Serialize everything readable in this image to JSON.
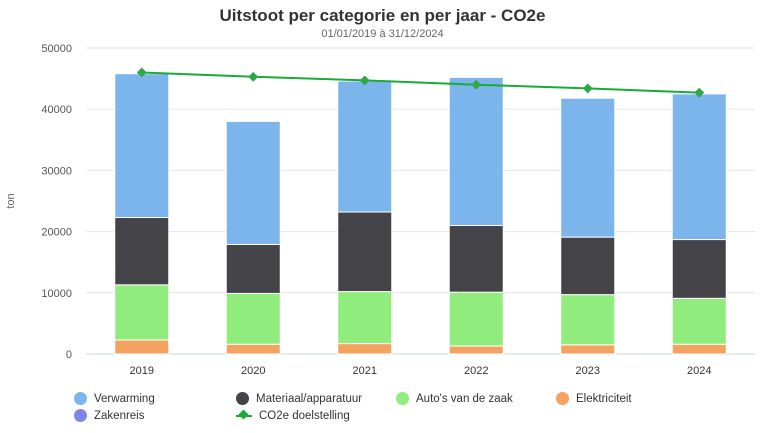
{
  "chart_data": {
    "type": "bar",
    "stacked": true,
    "title": "Uitstoot per categorie en per jaar - CO2e",
    "subtitle": "01/01/2019 à 31/12/2024",
    "ylabel": "ton",
    "ylim": [
      0,
      50000
    ],
    "yticks": [
      "0",
      "10000",
      "20000",
      "30000",
      "40000",
      "50000"
    ],
    "grid": true,
    "legend_position": "bottom",
    "categories": [
      "2019",
      "2020",
      "2021",
      "2022",
      "2023",
      "2024"
    ],
    "series": [
      {
        "name": "Elektriciteit",
        "color": "#f4a261",
        "values": [
          2300,
          1600,
          1700,
          1300,
          1500,
          1600
        ]
      },
      {
        "name": "Auto's van de zaak",
        "color": "#90ed7d",
        "values": [
          9000,
          8300,
          8500,
          8800,
          8200,
          7500
        ]
      },
      {
        "name": "Materiaal/apparatuur",
        "color": "#434348",
        "values": [
          11000,
          8000,
          13000,
          10900,
          9400,
          9600
        ]
      },
      {
        "name": "Verwarming",
        "color": "#7cb5ec",
        "values": [
          23500,
          20100,
          21400,
          24200,
          22700,
          23800
        ]
      },
      {
        "name": "Zakenreis",
        "color": "#8085e9",
        "values": [
          0,
          0,
          0,
          0,
          0,
          0
        ]
      }
    ],
    "line_series": {
      "name": "CO2e doelstelling",
      "color": "#1aaa3a",
      "marker_color": "#2ea84a",
      "values": [
        46000,
        45300,
        44700,
        44000,
        43400,
        42700
      ]
    }
  },
  "legend": [
    {
      "label": "Verwarming",
      "color": "#7cb5ec",
      "kind": "dot"
    },
    {
      "label": "Materiaal/apparatuur",
      "color": "#434348",
      "kind": "dot"
    },
    {
      "label": "Auto's van de zaak",
      "color": "#90ed7d",
      "kind": "dot"
    },
    {
      "label": "Elektriciteit",
      "color": "#f4a261",
      "kind": "dot"
    },
    {
      "label": "Zakenreis",
      "color": "#8085e9",
      "kind": "dot"
    },
    {
      "label": "CO2e doelstelling",
      "color": "#1aaa3a",
      "kind": "line"
    }
  ]
}
